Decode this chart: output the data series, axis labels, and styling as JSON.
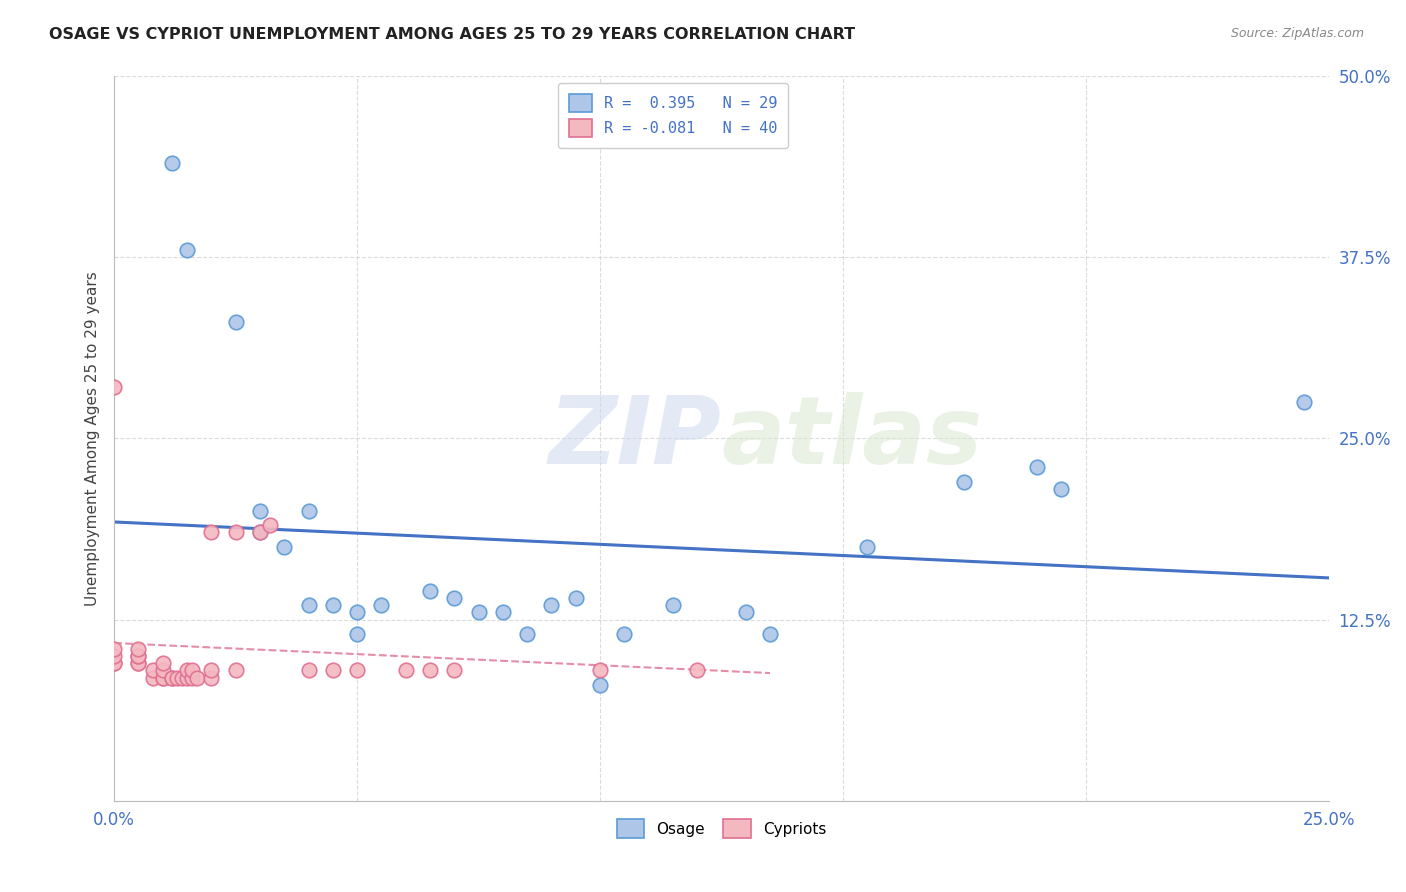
{
  "title": "OSAGE VS CYPRIOT UNEMPLOYMENT AMONG AGES 25 TO 29 YEARS CORRELATION CHART",
  "source": "Source: ZipAtlas.com",
  "ylabel": "Unemployment Among Ages 25 to 29 years",
  "xlim": [
    0.0,
    0.25
  ],
  "ylim": [
    0.0,
    0.5
  ],
  "xticks": [
    0.0,
    0.05,
    0.1,
    0.15,
    0.2,
    0.25
  ],
  "yticks": [
    0.0,
    0.125,
    0.25,
    0.375,
    0.5
  ],
  "xtick_labels": [
    "0.0%",
    "",
    "",
    "",
    "",
    "25.0%"
  ],
  "ytick_labels": [
    "",
    "12.5%",
    "25.0%",
    "37.5%",
    "50.0%"
  ],
  "background_color": "#ffffff",
  "grid_color": "#cccccc",
  "watermark_zip": "ZIP",
  "watermark_atlas": "atlas",
  "legend_r1": "R =  0.395   N = 29",
  "legend_r2": "R = -0.081   N = 40",
  "osage_color": "#aec6e8",
  "cypriot_color": "#f4b8c1",
  "osage_edge_color": "#5b9bd5",
  "cypriot_edge_color": "#e07090",
  "trend_osage_color": "#4472c4",
  "trend_cypriot_color": "#e07090",
  "osage_x": [
    0.012,
    0.015,
    0.025,
    0.03,
    0.03,
    0.035,
    0.04,
    0.04,
    0.045,
    0.05,
    0.05,
    0.055,
    0.065,
    0.07,
    0.075,
    0.08,
    0.085,
    0.09,
    0.095,
    0.1,
    0.105,
    0.115,
    0.13,
    0.135,
    0.155,
    0.175,
    0.19,
    0.195,
    0.245
  ],
  "osage_y": [
    0.44,
    0.38,
    0.33,
    0.2,
    0.185,
    0.175,
    0.135,
    0.2,
    0.135,
    0.13,
    0.115,
    0.135,
    0.145,
    0.14,
    0.13,
    0.13,
    0.115,
    0.135,
    0.14,
    0.08,
    0.115,
    0.135,
    0.13,
    0.115,
    0.175,
    0.22,
    0.23,
    0.215,
    0.275
  ],
  "cypriot_x": [
    0.0,
    0.0,
    0.0,
    0.0,
    0.0,
    0.005,
    0.005,
    0.005,
    0.005,
    0.005,
    0.008,
    0.008,
    0.01,
    0.01,
    0.01,
    0.01,
    0.012,
    0.012,
    0.013,
    0.014,
    0.015,
    0.015,
    0.016,
    0.016,
    0.017,
    0.02,
    0.02,
    0.02,
    0.025,
    0.025,
    0.03,
    0.032,
    0.04,
    0.045,
    0.05,
    0.06,
    0.065,
    0.07,
    0.1,
    0.12
  ],
  "cypriot_y": [
    0.095,
    0.095,
    0.1,
    0.105,
    0.285,
    0.095,
    0.095,
    0.1,
    0.1,
    0.105,
    0.085,
    0.09,
    0.085,
    0.085,
    0.09,
    0.095,
    0.085,
    0.085,
    0.085,
    0.085,
    0.085,
    0.09,
    0.085,
    0.09,
    0.085,
    0.085,
    0.09,
    0.185,
    0.09,
    0.185,
    0.185,
    0.19,
    0.09,
    0.09,
    0.09,
    0.09,
    0.09,
    0.09,
    0.09,
    0.09
  ]
}
